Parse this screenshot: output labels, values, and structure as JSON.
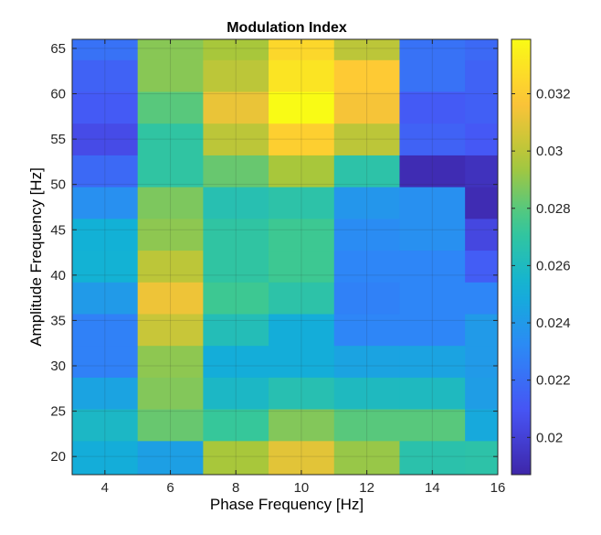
{
  "chart_data": {
    "type": "heatmap",
    "title": "Modulation Index",
    "xlabel": "Phase Frequency [Hz]",
    "ylabel": "Amplitude Frequency [Hz]",
    "colormap": "parula",
    "x": [
      4,
      6,
      8,
      10,
      12,
      14,
      16
    ],
    "xlim": [
      3,
      16
    ],
    "x_ticks": [
      4,
      6,
      8,
      10,
      12,
      14,
      16
    ],
    "y": [
      20,
      23.5,
      27,
      30.5,
      34,
      37.5,
      41,
      44.5,
      48,
      51.5,
      55,
      58.5,
      62,
      65.5
    ],
    "ylim": [
      18,
      66
    ],
    "y_ticks": [
      20,
      25,
      30,
      35,
      40,
      45,
      50,
      55,
      60,
      65
    ],
    "values": [
      [
        0.025,
        0.0243,
        0.0295,
        0.031,
        0.0292,
        0.0267,
        0.0268
      ],
      [
        0.0258,
        0.0283,
        0.0273,
        0.0288,
        0.028,
        0.028,
        0.0248
      ],
      [
        0.0245,
        0.0288,
        0.0258,
        0.0265,
        0.026,
        0.026,
        0.0242
      ],
      [
        0.0228,
        0.029,
        0.025,
        0.025,
        0.0245,
        0.0245,
        0.024
      ],
      [
        0.0228,
        0.0303,
        0.0263,
        0.025,
        0.023,
        0.023,
        0.024
      ],
      [
        0.024,
        0.0313,
        0.0275,
        0.0268,
        0.0228,
        0.023,
        0.023
      ],
      [
        0.0253,
        0.03,
        0.027,
        0.0275,
        0.023,
        0.023,
        0.0213
      ],
      [
        0.0252,
        0.029,
        0.027,
        0.0275,
        0.0233,
        0.0235,
        0.0203
      ],
      [
        0.0235,
        0.0287,
        0.0265,
        0.0268,
        0.0238,
        0.0235,
        0.019
      ],
      [
        0.0218,
        0.027,
        0.0283,
        0.0295,
        0.0268,
        0.019,
        0.0193
      ],
      [
        0.0205,
        0.027,
        0.03,
        0.0322,
        0.03,
        0.0215,
        0.0211
      ],
      [
        0.0212,
        0.028,
        0.0312,
        0.0339,
        0.0315,
        0.0212,
        0.0214
      ],
      [
        0.0215,
        0.0289,
        0.03,
        0.033,
        0.032,
        0.0222,
        0.0215
      ],
      [
        0.0222,
        0.0289,
        0.0295,
        0.0325,
        0.03,
        0.0222,
        0.0218
      ]
    ],
    "color_range": [
      0.0187,
      0.0339
    ],
    "colorbar_ticks": [
      0.02,
      0.022,
      0.024,
      0.026,
      0.028,
      0.03,
      0.032
    ],
    "colorbar_tick_labels": [
      "0.02",
      "0.022",
      "0.024",
      "0.026",
      "0.028",
      "0.03",
      "0.032"
    ],
    "grid": true,
    "colorbar": "right"
  }
}
